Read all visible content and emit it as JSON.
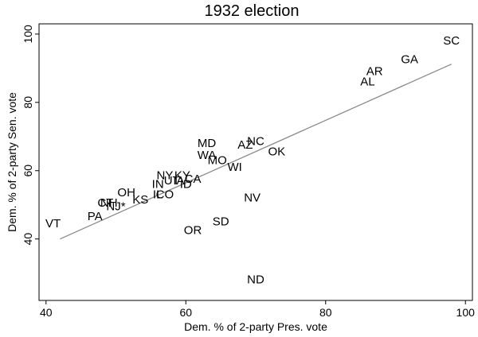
{
  "chart_data": {
    "type": "scatter",
    "title": "1932 election",
    "xlabel": "Dem. % of 2-party Pres. vote",
    "ylabel": "Dem. % of 2-party Sen. vote",
    "xlim": [
      39,
      101
    ],
    "ylim": [
      22,
      103
    ],
    "xticks": [
      40,
      60,
      80,
      100
    ],
    "yticks": [
      40,
      60,
      80,
      100
    ],
    "grid": false,
    "legend": "none",
    "marker": "label",
    "points": [
      {
        "label": "SC",
        "x": 98.0,
        "y": 98.0
      },
      {
        "label": "GA",
        "x": 92.0,
        "y": 92.5
      },
      {
        "label": "AR",
        "x": 87.0,
        "y": 89.0
      },
      {
        "label": "AL",
        "x": 86.0,
        "y": 86.0
      },
      {
        "label": "NC",
        "x": 70.0,
        "y": 68.5
      },
      {
        "label": "AZ",
        "x": 68.5,
        "y": 67.5
      },
      {
        "label": "OK",
        "x": 73.0,
        "y": 65.5
      },
      {
        "label": "MD",
        "x": 63.0,
        "y": 68.0
      },
      {
        "label": "WA",
        "x": 63.0,
        "y": 64.5
      },
      {
        "label": "MO",
        "x": 64.5,
        "y": 63.0
      },
      {
        "label": "WI",
        "x": 67.0,
        "y": 61.0
      },
      {
        "label": "NY",
        "x": 57.0,
        "y": 58.5
      },
      {
        "label": "KY",
        "x": 59.5,
        "y": 58.5
      },
      {
        "label": "CA",
        "x": 61.0,
        "y": 57.5
      },
      {
        "label": "IN",
        "x": 56.0,
        "y": 56.0
      },
      {
        "label": "UT",
        "x": 58.0,
        "y": 57.0
      },
      {
        "label": "IA",
        "x": 59.0,
        "y": 57.0
      },
      {
        "label": "ID",
        "x": 60.0,
        "y": 56.0
      },
      {
        "label": "OH",
        "x": 51.5,
        "y": 53.5
      },
      {
        "label": "CO",
        "x": 57.0,
        "y": 53.0
      },
      {
        "label": "IL",
        "x": 56.0,
        "y": 53.0
      },
      {
        "label": "KS",
        "x": 53.5,
        "y": 51.5
      },
      {
        "label": "CT",
        "x": 48.5,
        "y": 50.5
      },
      {
        "label": "NH",
        "x": 49.0,
        "y": 50.5
      },
      {
        "label": "NJ*",
        "x": 50.0,
        "y": 49.5
      },
      {
        "label": "VT",
        "x": 41.0,
        "y": 44.5
      },
      {
        "label": "PA",
        "x": 47.0,
        "y": 46.5
      },
      {
        "label": "NV",
        "x": 69.5,
        "y": 52.0
      },
      {
        "label": "SD",
        "x": 65.0,
        "y": 45.0
      },
      {
        "label": "OR",
        "x": 61.0,
        "y": 42.5
      },
      {
        "label": "ND",
        "x": 70.0,
        "y": 28.0
      }
    ],
    "fit_line": {
      "x": [
        42,
        98
      ],
      "y": [
        40.0,
        91.2
      ]
    },
    "colors": {
      "labels": "#000000",
      "fit_line": "#8a8a8a",
      "frame": "#000000",
      "background": "#ffffff"
    }
  }
}
